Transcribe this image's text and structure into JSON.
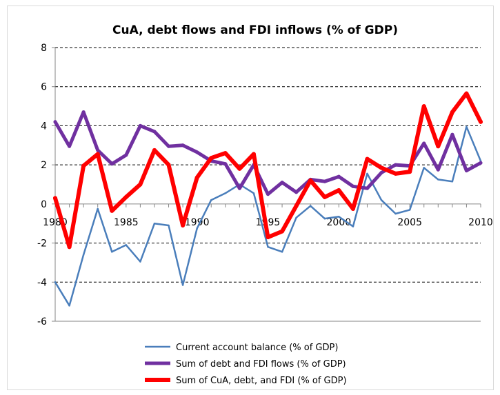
{
  "chart_data": {
    "type": "line",
    "title": "CuA, debt flows and FDI inflows (% of GDP)",
    "xlabel": "",
    "ylabel": "",
    "xlim": [
      1980,
      2010
    ],
    "ylim": [
      -6,
      8
    ],
    "yticks": [
      8,
      6,
      4,
      2,
      0,
      -2,
      -4,
      -6
    ],
    "xticks": [
      1980,
      1985,
      1990,
      1995,
      2000,
      2005,
      2010
    ],
    "grid": "horizontal dashed",
    "legend": "bottom",
    "x": [
      1980,
      1981,
      1982,
      1983,
      1984,
      1985,
      1986,
      1987,
      1988,
      1989,
      1990,
      1991,
      1992,
      1993,
      1994,
      1995,
      1996,
      1997,
      1998,
      1999,
      2000,
      2001,
      2002,
      2003,
      2004,
      2005,
      2006,
      2007,
      2008,
      2009,
      2010
    ],
    "series": [
      {
        "name": "Current account balance (% of GDP)",
        "color": "#4a7ebb",
        "width": 2.5,
        "values": [
          -4.0,
          -5.2,
          -2.6,
          -0.25,
          -2.45,
          -2.1,
          -2.95,
          -1.0,
          -1.1,
          -4.15,
          -1.25,
          0.2,
          0.55,
          1.0,
          0.55,
          -2.2,
          -2.45,
          -0.7,
          -0.1,
          -0.75,
          -0.65,
          -1.15,
          1.55,
          0.2,
          -0.5,
          -0.3,
          1.85,
          1.25,
          1.15,
          3.95,
          2.2
        ]
      },
      {
        "name": "Sum of debt and FDI flows (% of GDP)",
        "color": "#7030a0",
        "width": 5,
        "values": [
          4.2,
          2.95,
          4.7,
          2.75,
          2.05,
          2.5,
          4.0,
          3.7,
          2.95,
          3.0,
          2.65,
          2.2,
          2.05,
          0.8,
          2.0,
          0.5,
          1.1,
          0.6,
          1.25,
          1.15,
          1.4,
          0.9,
          0.8,
          1.6,
          2.0,
          1.95,
          3.1,
          1.75,
          3.55,
          1.7,
          2.1
        ]
      },
      {
        "name": "Sum of CuA, debt, and FDI (% of GDP)",
        "color": "#ff0000",
        "width": 6,
        "values": [
          0.3,
          -2.2,
          1.95,
          2.55,
          -0.35,
          0.35,
          1.0,
          2.75,
          2.0,
          -1.1,
          1.35,
          2.35,
          2.6,
          1.8,
          2.55,
          -1.7,
          -1.4,
          -0.1,
          1.2,
          0.35,
          0.7,
          -0.25,
          2.3,
          1.85,
          1.55,
          1.65,
          5.0,
          2.95,
          4.7,
          5.65,
          4.2
        ]
      }
    ]
  }
}
